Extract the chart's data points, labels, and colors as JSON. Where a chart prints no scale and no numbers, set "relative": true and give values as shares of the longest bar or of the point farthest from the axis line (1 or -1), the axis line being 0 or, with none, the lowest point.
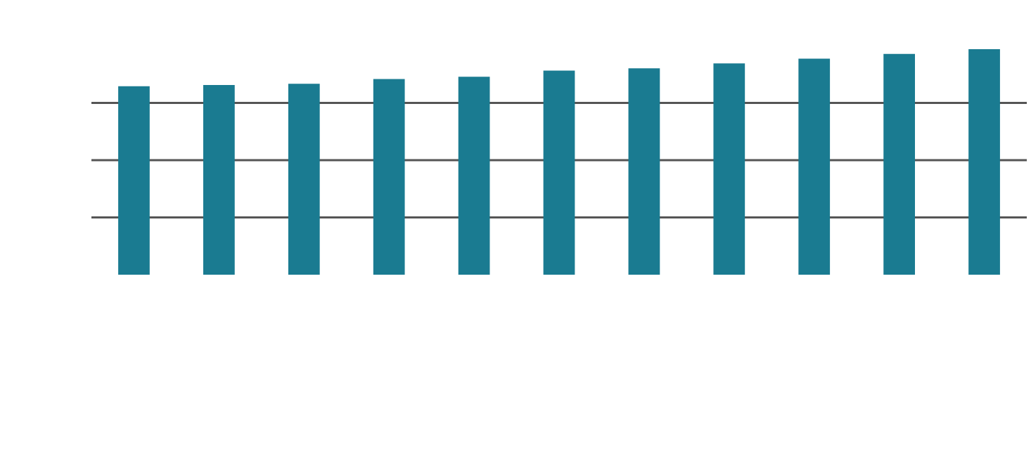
{
  "chart_data": {
    "type": "bar",
    "relative": true,
    "categories": [
      null,
      null,
      null,
      null,
      null,
      null,
      null,
      null,
      null,
      null,
      null
    ],
    "values": [
      0.836,
      0.841,
      0.847,
      0.868,
      0.878,
      0.905,
      0.915,
      0.937,
      0.958,
      0.979,
      1
    ],
    "color": "#1a7b91",
    "ref_lines": [
      {
        "axis": "y",
        "value": 0.254,
        "color": "#555555"
      },
      {
        "axis": "y",
        "value": 0.508,
        "color": "#555555"
      },
      {
        "axis": "y",
        "value": 0.762,
        "color": "#555555"
      }
    ]
  }
}
